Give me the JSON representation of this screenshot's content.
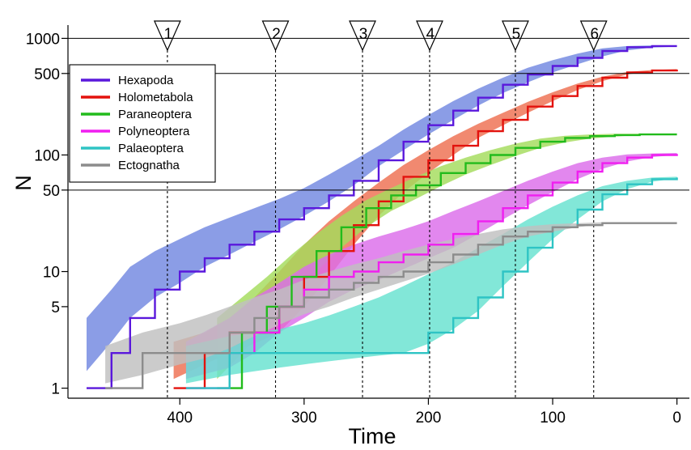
{
  "chart_data": {
    "type": "line",
    "xlabel": "Time",
    "ylabel": "N",
    "xlim": [
      490,
      -10
    ],
    "ylim": [
      0.82,
      1300
    ],
    "y_scale": "log",
    "x_ticks": [
      400,
      300,
      200,
      100,
      0
    ],
    "y_ticks": [
      1,
      5,
      10,
      50,
      100,
      500,
      1000
    ],
    "y_reference_lines": [
      50,
      500,
      1000
    ],
    "legend": {
      "position": "top-left"
    },
    "events": [
      {
        "label": "1",
        "x": 410
      },
      {
        "label": "2",
        "x": 323
      },
      {
        "label": "3",
        "x": 253
      },
      {
        "label": "4",
        "x": 199
      },
      {
        "label": "5",
        "x": 130
      },
      {
        "label": "6",
        "x": 67
      }
    ],
    "series": [
      {
        "name": "Hexapoda",
        "color": "#5a18dc",
        "band_color": "#7288e0",
        "x": [
          475,
          455,
          440,
          420,
          400,
          380,
          360,
          340,
          320,
          300,
          280,
          260,
          240,
          220,
          200,
          180,
          160,
          140,
          120,
          100,
          80,
          60,
          40,
          20,
          0
        ],
        "y": [
          1,
          2,
          4,
          7,
          10,
          13,
          17,
          22,
          28,
          35,
          45,
          60,
          90,
          130,
          180,
          240,
          310,
          400,
          490,
          580,
          680,
          780,
          840,
          860,
          860
        ],
        "lower": [
          1.4,
          2.5,
          4,
          6,
          8,
          11,
          14,
          18,
          23,
          30,
          40,
          55,
          80,
          110,
          150,
          200,
          265,
          340,
          420,
          510,
          600,
          700,
          790,
          835,
          850
        ],
        "upper": [
          4,
          7,
          11,
          15,
          19,
          24,
          29,
          35,
          42,
          52,
          68,
          90,
          120,
          165,
          220,
          290,
          370,
          460,
          560,
          650,
          740,
          820,
          860,
          870,
          870
        ]
      },
      {
        "name": "Holometabola",
        "color": "#e3120d",
        "band_color": "#ee6f50",
        "x": [
          405,
          380,
          360,
          340,
          320,
          300,
          280,
          260,
          240,
          220,
          200,
          180,
          160,
          140,
          120,
          100,
          80,
          60,
          40,
          20,
          0
        ],
        "y": [
          1,
          2,
          3,
          3,
          5,
          9,
          15,
          25,
          40,
          65,
          90,
          120,
          160,
          200,
          260,
          320,
          390,
          460,
          510,
          530,
          540
        ],
        "lower": [
          1.2,
          1.6,
          2,
          2.4,
          3,
          5,
          9,
          17,
          30,
          48,
          70,
          100,
          140,
          180,
          230,
          290,
          360,
          430,
          490,
          525,
          535
        ],
        "upper": [
          2.5,
          3,
          4,
          6,
          10,
          17,
          27,
          40,
          58,
          82,
          110,
          145,
          185,
          230,
          285,
          345,
          410,
          470,
          515,
          535,
          545
        ]
      },
      {
        "name": "Paraneoptera",
        "color": "#22bb1c",
        "band_color": "#a4dc5c",
        "x": [
          370,
          350,
          330,
          310,
          290,
          270,
          250,
          230,
          210,
          190,
          170,
          150,
          130,
          110,
          90,
          70,
          50,
          30,
          10,
          0
        ],
        "y": [
          1,
          3,
          5,
          9,
          15,
          24,
          35,
          45,
          55,
          70,
          85,
          100,
          115,
          130,
          140,
          145,
          148,
          150,
          150,
          150
        ],
        "lower": [
          1.2,
          2,
          3.5,
          6,
          10,
          16,
          24,
          33,
          42,
          54,
          68,
          82,
          98,
          115,
          128,
          138,
          144,
          148,
          150,
          150
        ],
        "upper": [
          4,
          6,
          9,
          14,
          21,
          30,
          41,
          52,
          65,
          80,
          95,
          110,
          125,
          138,
          146,
          150,
          152,
          152,
          152,
          152
        ]
      },
      {
        "name": "Polyneoptera",
        "color": "#f01ef0",
        "band_color": "#dc6cea",
        "x": [
          395,
          360,
          340,
          320,
          300,
          280,
          260,
          240,
          220,
          200,
          180,
          160,
          140,
          120,
          100,
          80,
          60,
          40,
          20,
          0
        ],
        "y": [
          1,
          2,
          3,
          5,
          7,
          9,
          10,
          12,
          14,
          17,
          21,
          27,
          35,
          45,
          58,
          72,
          85,
          95,
          100,
          102
        ],
        "lower": [
          1.2,
          1.5,
          2,
          3,
          4,
          5.5,
          7,
          8.5,
          10.5,
          13,
          16,
          21,
          28,
          37,
          48,
          62,
          76,
          88,
          96,
          100
        ],
        "upper": [
          2.5,
          4,
          6,
          8,
          11,
          14,
          17,
          20,
          23,
          27,
          33,
          40,
          49,
          60,
          72,
          85,
          95,
          101,
          103,
          104
        ]
      },
      {
        "name": "Palaeoptera",
        "color": "#2ec4c4",
        "band_color": "#66e2d0",
        "x": [
          395,
          360,
          320,
          300,
          280,
          260,
          240,
          220,
          200,
          180,
          160,
          140,
          120,
          100,
          80,
          60,
          40,
          20,
          0
        ],
        "y": [
          1,
          2,
          2,
          2,
          2,
          2,
          2,
          2,
          3,
          4,
          6,
          10,
          16,
          24,
          34,
          46,
          56,
          62,
          64
        ],
        "lower": [
          1.1,
          1.3,
          1.5,
          1.6,
          1.7,
          1.8,
          1.9,
          2,
          2.4,
          3.2,
          4.6,
          7.5,
          12,
          19,
          28,
          40,
          51,
          59,
          63
        ],
        "upper": [
          2.3,
          2.8,
          3.2,
          3.6,
          4.2,
          5,
          6,
          7.5,
          9.5,
          12,
          16,
          21,
          28,
          36,
          45,
          54,
          60,
          64,
          65
        ]
      },
      {
        "name": "Ectognatha",
        "color": "#8c8c8c",
        "band_color": "#c0c0c0",
        "x": [
          460,
          430,
          400,
          380,
          360,
          340,
          320,
          300,
          280,
          260,
          240,
          220,
          200,
          180,
          160,
          140,
          120,
          100,
          80,
          60,
          40,
          20,
          0
        ],
        "y": [
          1,
          2,
          2,
          2,
          3,
          4,
          5,
          6,
          7,
          8,
          9,
          10,
          12,
          14,
          17,
          20,
          22,
          24,
          25,
          26,
          26,
          26,
          26
        ],
        "lower": [
          1.1,
          1.3,
          1.6,
          1.8,
          2.2,
          2.8,
          3.5,
          4.3,
          5,
          6,
          7,
          8.2,
          9.6,
          11.5,
          14,
          17,
          20,
          22,
          24,
          25.5,
          26,
          26,
          26
        ],
        "upper": [
          2.3,
          3,
          3.6,
          4.2,
          5,
          6,
          7,
          8.5,
          10,
          11.5,
          13,
          15,
          17,
          19,
          21,
          23,
          24.5,
          25.5,
          26,
          26.5,
          26.5,
          26.5,
          26.5
        ]
      }
    ]
  }
}
